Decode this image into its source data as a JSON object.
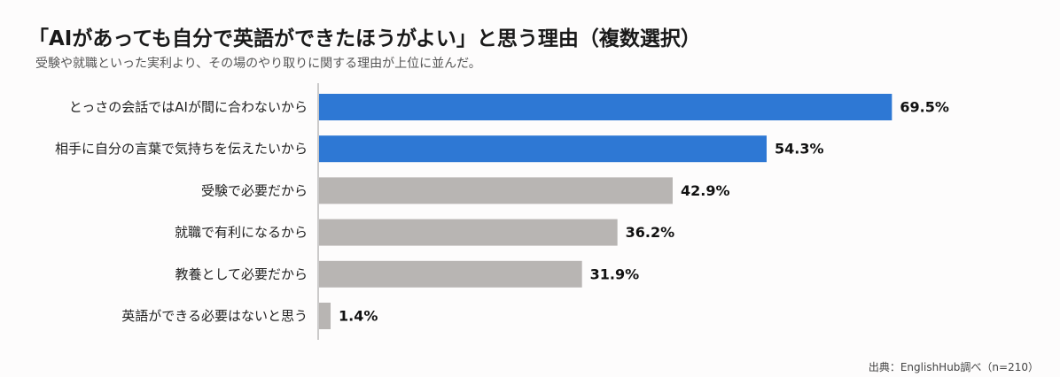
{
  "title": "「AIがあっても自分で英語ができたほうがよい」と思う理由（複数選択）",
  "subtitle": "受験や就職といった実利より、その場のやり取りに関する理由が上位に並んだ。",
  "source": "出典：EnglishHub調べ（n=210）",
  "colors": {
    "highlight": "#2e78d4",
    "default": "#b8b5b3",
    "axis": "#999999"
  },
  "chart_data": {
    "type": "bar",
    "orientation": "horizontal",
    "categories": [
      "とっさの会話ではAIが間に合わないから",
      "相手に自分の言葉で気持ちを伝えたいから",
      "受験で必要だから",
      "就職で有利になるから",
      "教養として必要だから",
      "英語ができる必要はないと思う"
    ],
    "values": [
      69.5,
      54.3,
      42.9,
      36.2,
      31.9,
      1.4
    ],
    "value_labels": [
      "69.5%",
      "54.3%",
      "42.9%",
      "36.2%",
      "31.9%",
      "1.4%"
    ],
    "highlighted": [
      true,
      true,
      false,
      false,
      false,
      false
    ],
    "unit": "%",
    "xlim": [
      0,
      100
    ],
    "grid": false,
    "legend": "none"
  }
}
